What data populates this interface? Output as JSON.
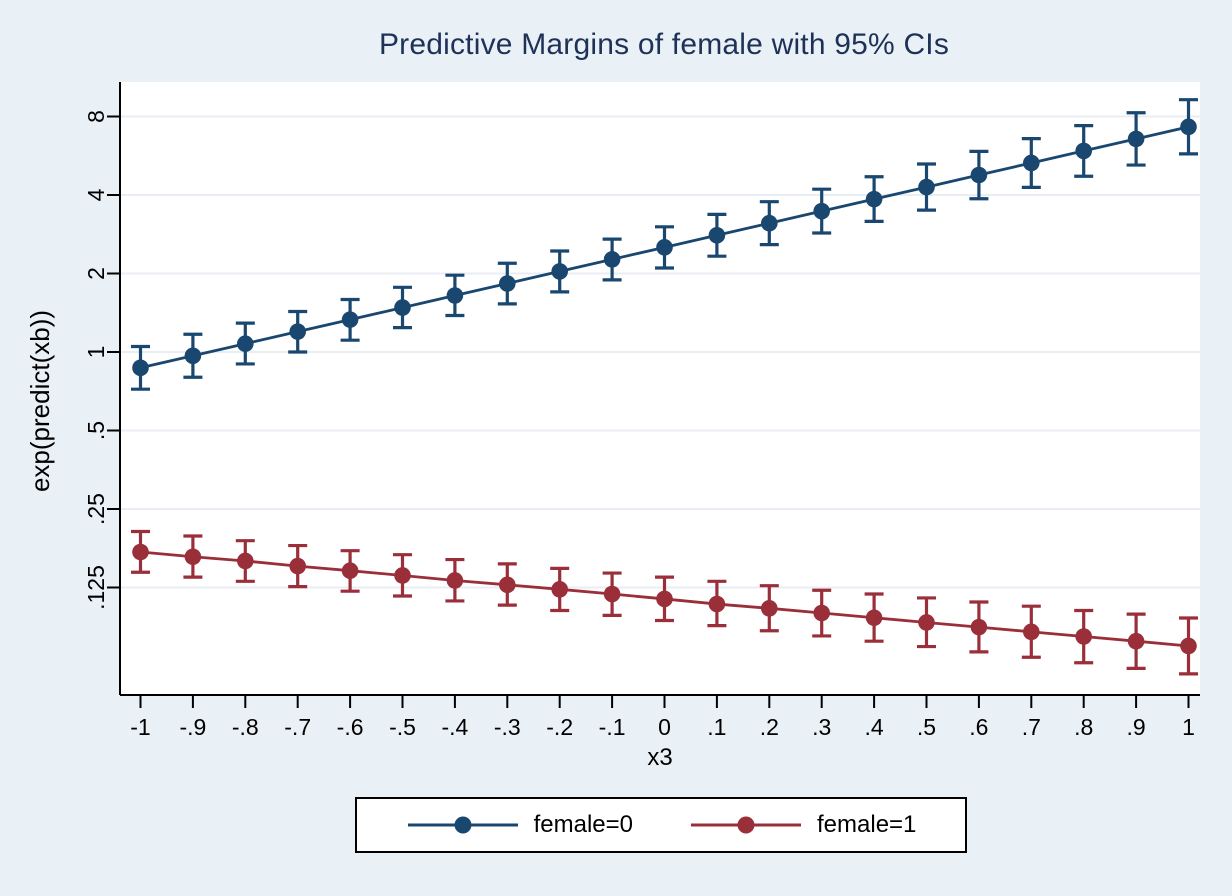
{
  "chart_data": {
    "type": "line",
    "error_bars": true,
    "title": "Predictive Margins of female with 95% CIs",
    "xlabel": "x3",
    "ylabel": "exp(predict(xb))",
    "y_scale": "log2",
    "grid": true,
    "legend_position": "bottom",
    "x": [
      -1,
      -0.9,
      -0.8,
      -0.7,
      -0.6,
      -0.5,
      -0.4,
      -0.3,
      -0.2,
      -0.1,
      0,
      0.1,
      0.2,
      0.3,
      0.4,
      0.5,
      0.6,
      0.7,
      0.8,
      0.9,
      1
    ],
    "x_tick_labels": [
      "-1",
      "-.9",
      "-.8",
      "-.7",
      "-.6",
      "-.5",
      "-.4",
      "-.3",
      "-.2",
      "-.1",
      "0",
      ".1",
      ".2",
      ".3",
      ".4",
      ".5",
      ".6",
      ".7",
      ".8",
      ".9",
      "1"
    ],
    "y_ticks": [
      8,
      4,
      2,
      1,
      0.5,
      0.25,
      0.125
    ],
    "y_tick_labels": [
      "8",
      "4",
      "2",
      "1",
      ".5",
      ".25",
      ".125"
    ],
    "ylim": [
      0.048,
      10.8
    ],
    "series": [
      {
        "name": "female=0",
        "color": "#1a476f",
        "values": [
          0.87,
          0.967,
          1.076,
          1.197,
          1.331,
          1.48,
          1.647,
          1.831,
          2.037,
          2.266,
          2.52,
          2.803,
          3.118,
          3.468,
          3.857,
          4.29,
          4.772,
          5.307,
          5.903,
          6.566,
          7.303
        ],
        "ci_low": [
          0.72,
          0.8,
          0.9,
          1.0,
          1.11,
          1.24,
          1.38,
          1.53,
          1.7,
          1.89,
          2.1,
          2.33,
          2.58,
          2.86,
          3.17,
          3.5,
          3.87,
          4.28,
          4.72,
          5.21,
          5.75
        ],
        "ci_high": [
          1.05,
          1.17,
          1.29,
          1.43,
          1.59,
          1.77,
          1.97,
          2.19,
          2.44,
          2.71,
          3.02,
          3.37,
          3.77,
          4.21,
          4.7,
          5.26,
          5.88,
          6.58,
          7.38,
          8.27,
          9.28
        ]
      },
      {
        "name": "female=1",
        "color": "#9a2f3a",
        "values": [
          0.171,
          0.164,
          0.158,
          0.151,
          0.145,
          0.139,
          0.133,
          0.128,
          0.123,
          0.118,
          0.113,
          0.108,
          0.104,
          0.0998,
          0.0957,
          0.0918,
          0.0881,
          0.0845,
          0.0811,
          0.0778,
          0.0746
        ],
        "ci_low": [
          0.143,
          0.137,
          0.132,
          0.126,
          0.121,
          0.116,
          0.111,
          0.107,
          0.102,
          0.0977,
          0.0934,
          0.0893,
          0.0853,
          0.0815,
          0.0778,
          0.0742,
          0.0708,
          0.0675,
          0.0643,
          0.0612,
          0.0583
        ],
        "ci_high": [
          0.205,
          0.197,
          0.189,
          0.181,
          0.173,
          0.167,
          0.16,
          0.154,
          0.148,
          0.142,
          0.137,
          0.132,
          0.127,
          0.122,
          0.118,
          0.114,
          0.11,
          0.106,
          0.102,
          0.0988,
          0.0955
        ]
      }
    ]
  },
  "style": {
    "background": "#e9f0f6",
    "plot_background": "#ffffff",
    "gridline_color": "#e8eef4",
    "axis_color": "#000000",
    "title_color": "#1e3258",
    "legend_border_color": "#000000"
  }
}
